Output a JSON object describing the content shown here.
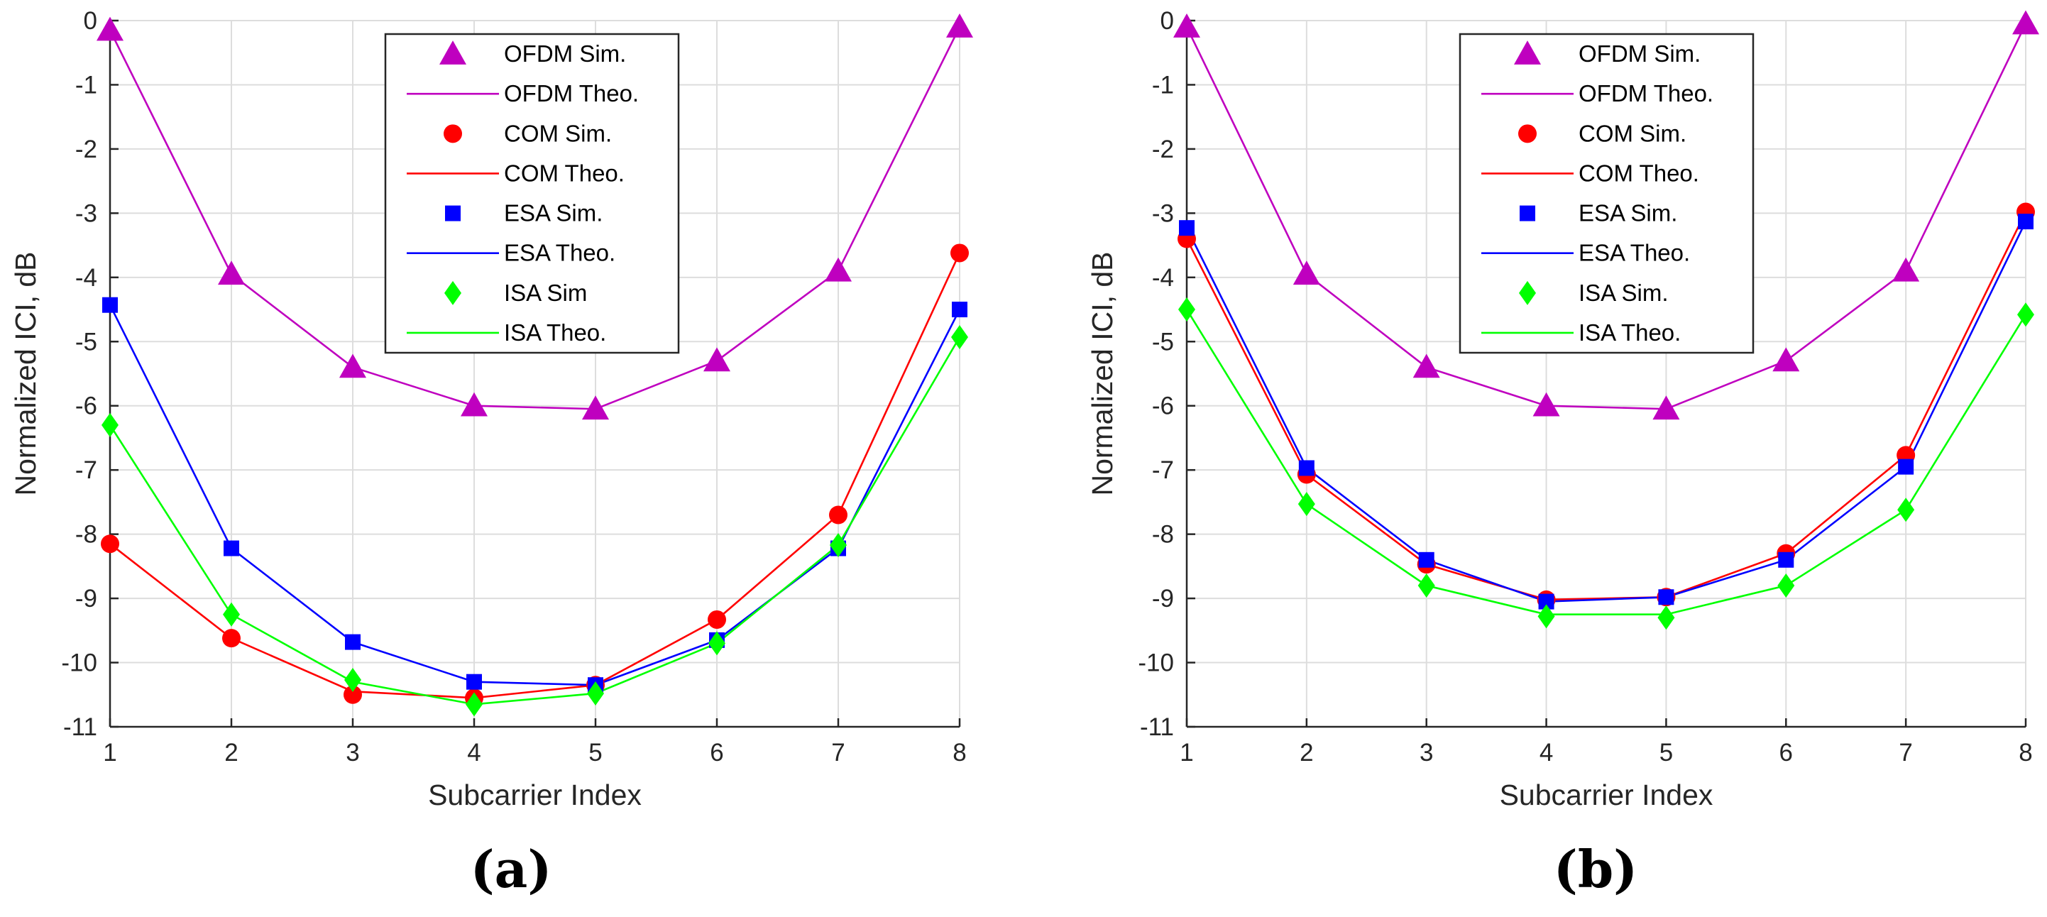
{
  "chart_data": [
    {
      "type": "line",
      "panel_label": "(a)",
      "xlabel": "Subcarrier Index",
      "ylabel": "Normalized ICI, dB",
      "x": [
        1,
        2,
        3,
        4,
        5,
        6,
        7,
        8
      ],
      "xlim": [
        1,
        8
      ],
      "ylim": [
        -11,
        0
      ],
      "xticks": [
        "1",
        "2",
        "3",
        "4",
        "5",
        "6",
        "7",
        "8"
      ],
      "yticks": [
        "0",
        "-1",
        "-2",
        "-3",
        "-4",
        "-5",
        "-6",
        "-7",
        "-8",
        "-9",
        "-10",
        "-11"
      ],
      "grid": true,
      "legend_position": "top-center",
      "series": [
        {
          "name": "OFDM Sim.",
          "kind": "markers",
          "marker": "triangle",
          "color": "#BF00BF",
          "values": [
            -0.15,
            -3.95,
            -5.4,
            -6.0,
            -6.05,
            -5.3,
            -3.9,
            -0.1
          ]
        },
        {
          "name": "OFDM Theo.",
          "kind": "line",
          "color": "#BF00BF",
          "values": [
            -0.15,
            -3.95,
            -5.4,
            -6.0,
            -6.05,
            -5.3,
            -3.9,
            -0.1
          ]
        },
        {
          "name": "COM Sim.",
          "kind": "markers",
          "marker": "circle",
          "color": "#FF0000",
          "values": [
            -8.15,
            -9.62,
            -10.5,
            -10.55,
            -10.35,
            -9.33,
            -7.7,
            -3.62
          ]
        },
        {
          "name": "COM Theo.",
          "kind": "line",
          "color": "#FF0000",
          "values": [
            -8.15,
            -9.62,
            -10.45,
            -10.55,
            -10.35,
            -9.33,
            -7.7,
            -3.62
          ]
        },
        {
          "name": "ESA Sim.",
          "kind": "markers",
          "marker": "square",
          "color": "#0000FF",
          "values": [
            -4.43,
            -8.22,
            -9.68,
            -10.3,
            -10.35,
            -9.65,
            -8.22,
            -4.5
          ]
        },
        {
          "name": "ESA Theo.",
          "kind": "line",
          "color": "#0000FF",
          "values": [
            -4.43,
            -8.22,
            -9.68,
            -10.3,
            -10.35,
            -9.65,
            -8.22,
            -4.5
          ]
        },
        {
          "name": "ISA Sim",
          "kind": "markers",
          "marker": "diamond",
          "color": "#00FF00",
          "values": [
            -6.3,
            -9.25,
            -10.27,
            -10.65,
            -10.48,
            -9.7,
            -8.17,
            -4.93
          ]
        },
        {
          "name": "ISA Theo.",
          "kind": "line",
          "color": "#00FF00",
          "values": [
            -6.3,
            -9.25,
            -10.3,
            -10.65,
            -10.48,
            -9.7,
            -8.17,
            -4.93
          ]
        }
      ]
    },
    {
      "type": "line",
      "panel_label": "(b)",
      "xlabel": "Subcarrier Index",
      "ylabel": "Normalized ICI, dB",
      "x": [
        1,
        2,
        3,
        4,
        5,
        6,
        7,
        8
      ],
      "xlim": [
        1,
        8
      ],
      "ylim": [
        -11,
        0
      ],
      "xticks": [
        "1",
        "2",
        "3",
        "4",
        "5",
        "6",
        "7",
        "8"
      ],
      "yticks": [
        "0",
        "-1",
        "-2",
        "-3",
        "-4",
        "-5",
        "-6",
        "-7",
        "-8",
        "-9",
        "-10",
        "-11"
      ],
      "grid": true,
      "legend_position": "top-center",
      "series": [
        {
          "name": "OFDM Sim.",
          "kind": "markers",
          "marker": "triangle",
          "color": "#BF00BF",
          "values": [
            -0.1,
            -3.95,
            -5.4,
            -6.0,
            -6.05,
            -5.3,
            -3.9,
            -0.05
          ]
        },
        {
          "name": "OFDM Theo.",
          "kind": "line",
          "color": "#BF00BF",
          "values": [
            -0.1,
            -3.95,
            -5.4,
            -6.0,
            -6.05,
            -5.3,
            -3.9,
            -0.05
          ]
        },
        {
          "name": "COM Sim.",
          "kind": "markers",
          "marker": "circle",
          "color": "#FF0000",
          "values": [
            -3.4,
            -7.07,
            -8.47,
            -9.02,
            -8.98,
            -8.3,
            -6.77,
            -2.98
          ]
        },
        {
          "name": "COM Theo.",
          "kind": "line",
          "color": "#FF0000",
          "values": [
            -3.4,
            -7.07,
            -8.47,
            -9.02,
            -8.98,
            -8.3,
            -6.77,
            -2.98
          ]
        },
        {
          "name": "ESA Sim.",
          "kind": "markers",
          "marker": "square",
          "color": "#0000FF",
          "values": [
            -3.23,
            -6.97,
            -8.4,
            -9.05,
            -8.98,
            -8.4,
            -6.95,
            -3.13
          ]
        },
        {
          "name": "ESA Theo.",
          "kind": "line",
          "color": "#0000FF",
          "values": [
            -3.23,
            -6.97,
            -8.4,
            -9.05,
            -8.98,
            -8.4,
            -6.95,
            -3.13
          ]
        },
        {
          "name": "ISA Sim.",
          "kind": "markers",
          "marker": "diamond",
          "color": "#00FF00",
          "values": [
            -4.5,
            -7.53,
            -8.8,
            -9.28,
            -9.3,
            -8.8,
            -7.62,
            -4.58
          ]
        },
        {
          "name": "ISA Theo.",
          "kind": "line",
          "color": "#00FF00",
          "values": [
            -4.5,
            -7.53,
            -8.8,
            -9.25,
            -9.25,
            -8.8,
            -7.62,
            -4.58
          ]
        }
      ]
    }
  ]
}
